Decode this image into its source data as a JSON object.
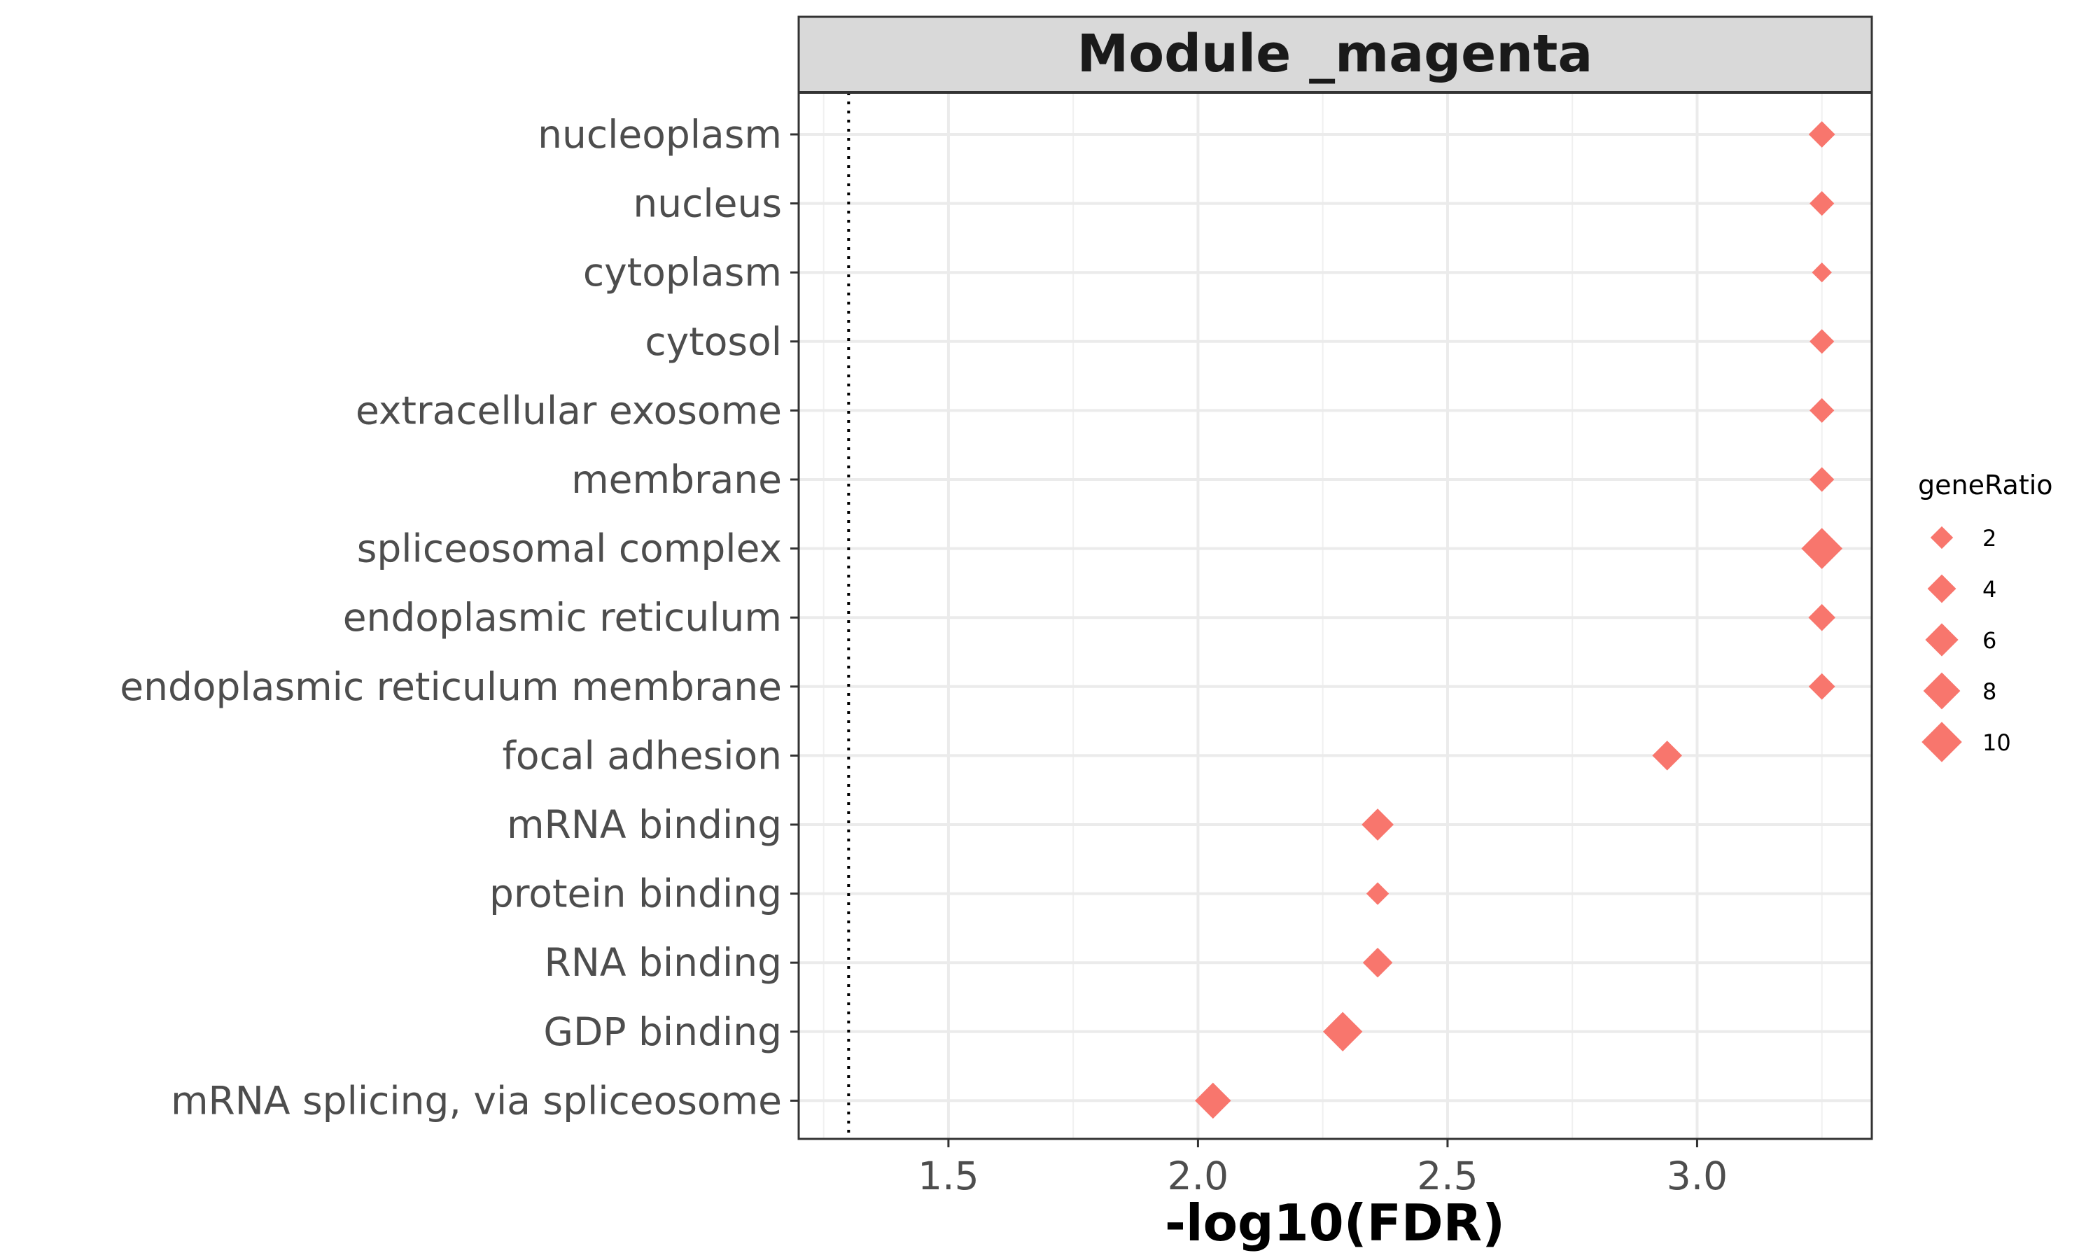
{
  "chart_data": {
    "type": "scatter",
    "title": "Module _magenta",
    "xlabel": "-log10(FDR)",
    "ylabel": "",
    "xlim": [
      1.2,
      3.35
    ],
    "x_ticks": [
      1.5,
      2.0,
      2.5,
      3.0
    ],
    "x_tick_labels": [
      "1.5",
      "2.0",
      "2.5",
      "3.0"
    ],
    "reference_line_x": 1.3,
    "marker": "diamond",
    "color": "#F8766D",
    "grid": true,
    "categories": [
      "nucleoplasm",
      "nucleus",
      "cytoplasm",
      "cytosol",
      "extracellular exosome",
      "membrane",
      "spliceosomal complex",
      "endoplasmic reticulum",
      "endoplasmic reticulum membrane",
      "focal adhesion",
      "mRNA binding",
      "protein binding",
      "RNA binding",
      "GDP binding",
      "mRNA splicing, via spliceosome"
    ],
    "x": [
      3.25,
      3.25,
      3.25,
      3.25,
      3.25,
      3.25,
      3.25,
      3.25,
      3.25,
      2.94,
      2.36,
      2.36,
      2.36,
      2.29,
      2.03
    ],
    "size": [
      3.2,
      2.6,
      1.3,
      2.6,
      2.6,
      2.6,
      10.5,
      3.4,
      3.2,
      4.5,
      5.5,
      2.0,
      4.5,
      9.5,
      7.5
    ],
    "legend": {
      "title": "geneRatio",
      "position": "right",
      "labels": [
        "2",
        "4",
        "6",
        "8",
        "10"
      ],
      "values": [
        2,
        4,
        6,
        8,
        10
      ]
    }
  }
}
